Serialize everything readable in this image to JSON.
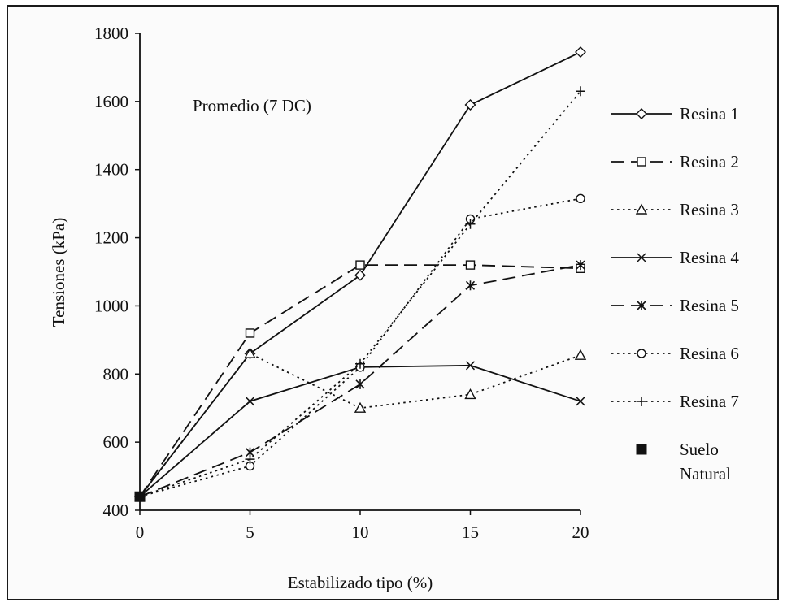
{
  "chart_data": {
    "type": "line",
    "annotation": "Promedio (7 DC)",
    "xlabel": "Estabilizado tipo (%)",
    "ylabel": "Tensiones (kPa)",
    "xlim": [
      0,
      20
    ],
    "ylim": [
      400,
      1800
    ],
    "xticks": [
      0,
      5,
      10,
      15,
      20
    ],
    "yticks": [
      400,
      600,
      800,
      1000,
      1200,
      1400,
      1600,
      1800
    ],
    "x": [
      0,
      5,
      10,
      15,
      20
    ],
    "grid": false,
    "legend_position": "right",
    "series": [
      {
        "name": "Resina 1",
        "values": [
          440,
          860,
          1090,
          1590,
          1745
        ],
        "dash": "solid",
        "marker": "diamond"
      },
      {
        "name": "Resina 2",
        "values": [
          440,
          920,
          1120,
          1120,
          1110
        ],
        "dash": "long-dash",
        "marker": "square"
      },
      {
        "name": "Resina 3",
        "values": [
          440,
          860,
          700,
          740,
          855
        ],
        "dash": "dotted",
        "marker": "triangle"
      },
      {
        "name": "Resina 4",
        "values": [
          440,
          720,
          820,
          825,
          720
        ],
        "dash": "solid",
        "marker": "x"
      },
      {
        "name": "Resina 5",
        "values": [
          440,
          570,
          770,
          1060,
          1120
        ],
        "dash": "long-dash",
        "marker": "asterisk"
      },
      {
        "name": "Resina 6",
        "values": [
          440,
          530,
          820,
          1255,
          1315
        ],
        "dash": "dotted",
        "marker": "circle"
      },
      {
        "name": "Resina 7",
        "values": [
          440,
          550,
          830,
          1240,
          1630
        ],
        "dash": "dotted",
        "marker": "plus"
      },
      {
        "name": "Suelo\nNatural",
        "legend_lines": [
          "Suelo",
          "Natural"
        ],
        "x": [
          0
        ],
        "values": [
          440
        ],
        "dash": "none",
        "marker": "filled-square"
      }
    ]
  }
}
